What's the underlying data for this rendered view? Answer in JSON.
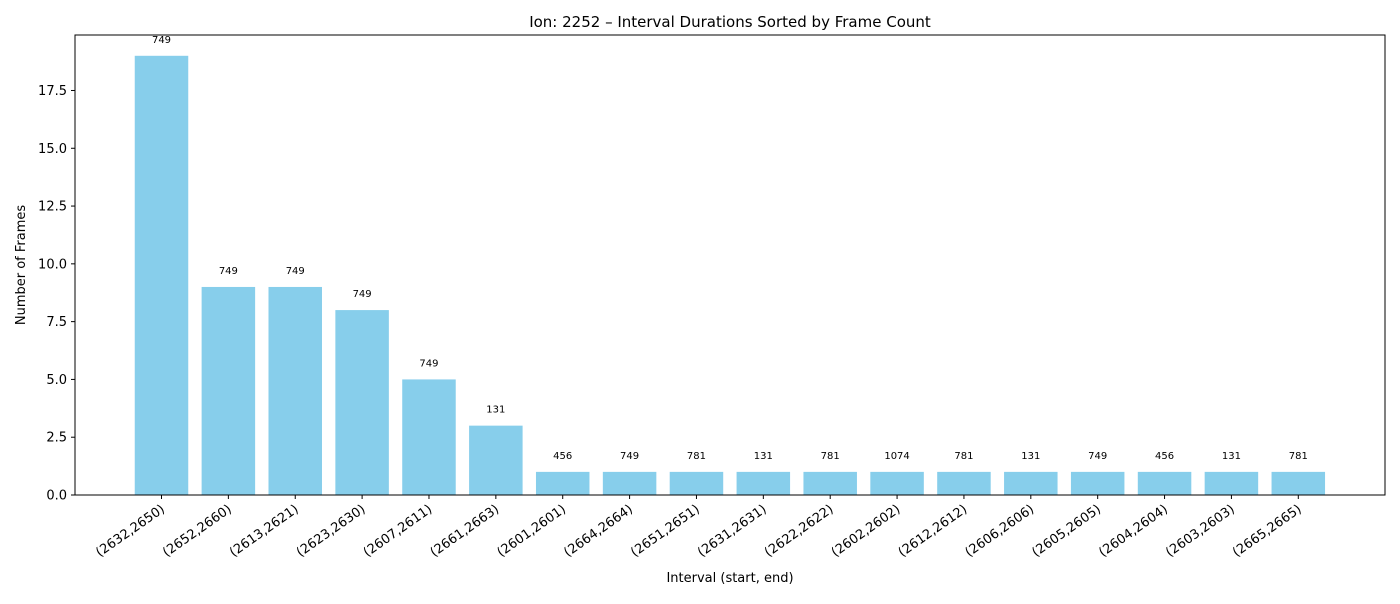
{
  "chart_data": {
    "type": "bar",
    "title": "Ion: 2252 – Interval Durations Sorted by Frame Count",
    "xlabel": "Interval (start, end)",
    "ylabel": "Number of Frames",
    "ylim": [
      0,
      19.9
    ],
    "yticks": [
      0.0,
      2.5,
      5.0,
      7.5,
      10.0,
      12.5,
      15.0,
      17.5
    ],
    "grid": false,
    "bar_color": "#87CEEB",
    "categories": [
      "(2632,2650)",
      "(2652,2660)",
      "(2613,2621)",
      "(2623,2630)",
      "(2607,2611)",
      "(2661,2663)",
      "(2601,2601)",
      "(2664,2664)",
      "(2651,2651)",
      "(2631,2631)",
      "(2622,2622)",
      "(2602,2602)",
      "(2612,2612)",
      "(2606,2606)",
      "(2605,2605)",
      "(2604,2604)",
      "(2603,2603)",
      "(2665,2665)"
    ],
    "values": [
      19,
      9,
      9,
      8,
      5,
      3,
      1,
      1,
      1,
      1,
      1,
      1,
      1,
      1,
      1,
      1,
      1,
      1
    ],
    "bar_labels": [
      "749",
      "749",
      "749",
      "749",
      "749",
      "131",
      "456",
      "749",
      "781",
      "131",
      "781",
      "1074",
      "781",
      "131",
      "749",
      "456",
      "131",
      "781"
    ]
  }
}
